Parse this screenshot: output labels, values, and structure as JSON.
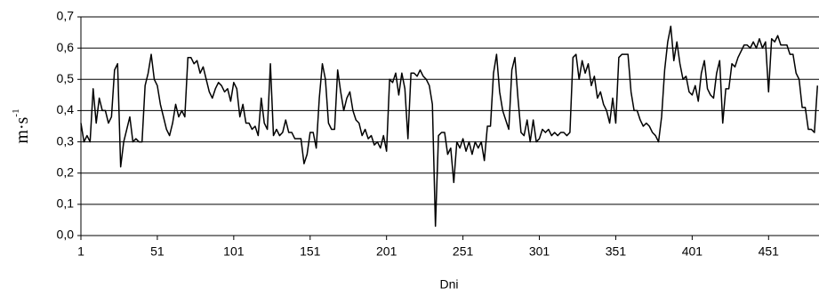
{
  "chart_data": {
    "type": "line",
    "y_label": "m·s",
    "y_label_sup": "-1",
    "x_label": "Dni",
    "x": [
      1,
      3,
      5,
      7,
      9,
      11,
      13,
      15,
      17,
      19,
      21,
      23,
      25,
      27,
      29,
      31,
      33,
      35,
      37,
      39,
      41,
      43,
      45,
      47,
      49,
      51,
      53,
      55,
      57,
      59,
      61,
      63,
      65,
      67,
      69,
      71,
      73,
      75,
      77,
      79,
      81,
      83,
      85,
      87,
      89,
      91,
      93,
      95,
      97,
      99,
      101,
      103,
      105,
      107,
      109,
      111,
      113,
      115,
      117,
      119,
      121,
      123,
      125,
      127,
      129,
      131,
      133,
      135,
      137,
      139,
      141,
      143,
      145,
      147,
      149,
      151,
      153,
      155,
      157,
      159,
      161,
      163,
      165,
      167,
      169,
      171,
      173,
      175,
      177,
      179,
      181,
      183,
      185,
      187,
      189,
      191,
      193,
      195,
      197,
      199,
      201,
      203,
      205,
      207,
      209,
      211,
      213,
      215,
      217,
      219,
      221,
      223,
      225,
      227,
      229,
      231,
      233,
      235,
      237,
      239,
      241,
      243,
      245,
      247,
      249,
      251,
      253,
      255,
      257,
      259,
      261,
      263,
      265,
      267,
      269,
      271,
      273,
      275,
      277,
      279,
      281,
      283,
      285,
      287,
      289,
      291,
      293,
      295,
      297,
      299,
      301,
      303,
      305,
      307,
      309,
      311,
      313,
      315,
      317,
      319,
      321,
      323,
      325,
      327,
      329,
      331,
      333,
      335,
      337,
      339,
      341,
      343,
      345,
      347,
      349,
      351,
      353,
      355,
      357,
      359,
      361,
      363,
      365,
      367,
      369,
      371,
      373,
      375,
      377,
      379,
      381,
      383,
      385,
      387,
      389,
      391,
      393,
      395,
      397,
      399,
      401,
      403,
      405,
      407,
      409,
      411,
      413,
      415,
      417,
      419,
      421,
      423,
      425,
      427,
      429,
      431,
      433,
      435,
      437,
      439,
      441,
      443,
      445,
      447,
      449,
      451,
      453,
      455,
      457,
      459,
      461,
      463,
      465,
      467,
      469,
      471,
      473,
      475,
      477,
      479,
      481,
      483
    ],
    "series": [
      {
        "color": "#000000",
        "values": [
          0.36,
          0.3,
          0.32,
          0.3,
          0.47,
          0.36,
          0.44,
          0.4,
          0.4,
          0.36,
          0.38,
          0.53,
          0.55,
          0.22,
          0.3,
          0.34,
          0.38,
          0.3,
          0.31,
          0.3,
          0.3,
          0.48,
          0.52,
          0.58,
          0.5,
          0.48,
          0.42,
          0.38,
          0.34,
          0.32,
          0.36,
          0.42,
          0.38,
          0.4,
          0.38,
          0.57,
          0.57,
          0.55,
          0.56,
          0.52,
          0.54,
          0.5,
          0.46,
          0.44,
          0.47,
          0.49,
          0.48,
          0.46,
          0.47,
          0.43,
          0.49,
          0.47,
          0.38,
          0.42,
          0.36,
          0.36,
          0.34,
          0.35,
          0.32,
          0.44,
          0.36,
          0.34,
          0.55,
          0.32,
          0.34,
          0.32,
          0.33,
          0.37,
          0.33,
          0.33,
          0.31,
          0.31,
          0.31,
          0.23,
          0.26,
          0.33,
          0.33,
          0.28,
          0.44,
          0.55,
          0.5,
          0.36,
          0.34,
          0.34,
          0.53,
          0.46,
          0.4,
          0.44,
          0.46,
          0.4,
          0.37,
          0.36,
          0.32,
          0.34,
          0.31,
          0.32,
          0.29,
          0.3,
          0.28,
          0.32,
          0.27,
          0.5,
          0.49,
          0.52,
          0.45,
          0.52,
          0.47,
          0.31,
          0.52,
          0.52,
          0.51,
          0.53,
          0.51,
          0.5,
          0.48,
          0.42,
          0.03,
          0.32,
          0.33,
          0.33,
          0.26,
          0.28,
          0.17,
          0.3,
          0.28,
          0.31,
          0.27,
          0.3,
          0.26,
          0.3,
          0.28,
          0.3,
          0.24,
          0.35,
          0.35,
          0.52,
          0.58,
          0.46,
          0.4,
          0.37,
          0.34,
          0.53,
          0.57,
          0.44,
          0.33,
          0.32,
          0.37,
          0.3,
          0.37,
          0.3,
          0.31,
          0.34,
          0.33,
          0.34,
          0.32,
          0.33,
          0.32,
          0.33,
          0.33,
          0.32,
          0.33,
          0.57,
          0.58,
          0.5,
          0.56,
          0.52,
          0.55,
          0.48,
          0.51,
          0.44,
          0.46,
          0.42,
          0.4,
          0.36,
          0.44,
          0.36,
          0.57,
          0.58,
          0.58,
          0.58,
          0.46,
          0.4,
          0.4,
          0.37,
          0.35,
          0.36,
          0.35,
          0.33,
          0.32,
          0.3,
          0.38,
          0.53,
          0.62,
          0.67,
          0.56,
          0.62,
          0.55,
          0.5,
          0.51,
          0.46,
          0.45,
          0.48,
          0.43,
          0.52,
          0.56,
          0.47,
          0.45,
          0.44,
          0.52,
          0.56,
          0.36,
          0.47,
          0.47,
          0.55,
          0.54,
          0.57,
          0.59,
          0.61,
          0.61,
          0.6,
          0.62,
          0.6,
          0.63,
          0.6,
          0.62,
          0.46,
          0.63,
          0.62,
          0.64,
          0.61,
          0.61,
          0.61,
          0.58,
          0.58,
          0.52,
          0.5,
          0.41,
          0.41,
          0.34,
          0.34,
          0.33,
          0.48
        ]
      }
    ],
    "xlim": [
      1,
      484
    ],
    "xticks": [
      1,
      51,
      101,
      151,
      201,
      251,
      301,
      351,
      401,
      451
    ],
    "ylim": [
      0,
      0.7
    ],
    "yticks": [
      {
        "value": 0,
        "label": "0,0"
      },
      {
        "value": 0.1,
        "label": "0,1"
      },
      {
        "value": 0.2,
        "label": "0,2"
      },
      {
        "value": 0.3,
        "label": "0,3"
      },
      {
        "value": 0.4,
        "label": "0,4"
      },
      {
        "value": 0.5,
        "label": "0,5"
      },
      {
        "value": 0.6,
        "label": "0,6"
      },
      {
        "value": 0.7,
        "label": "0,7"
      }
    ],
    "grid": true
  }
}
